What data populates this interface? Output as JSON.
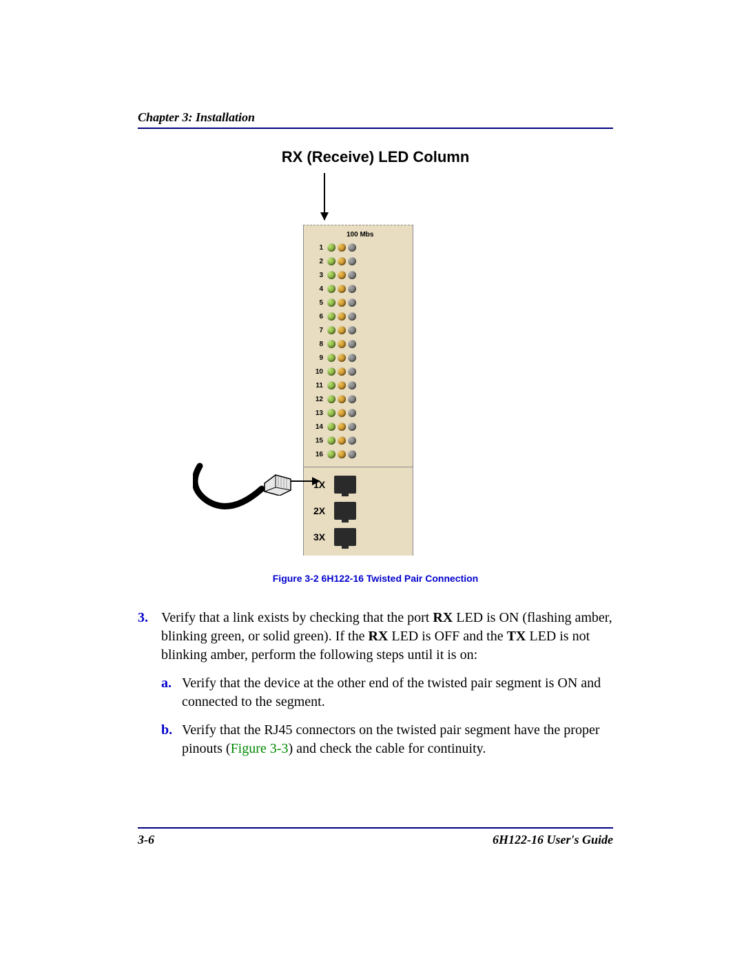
{
  "header": {
    "chapter": "Chapter 3:",
    "title": "Installation"
  },
  "figure": {
    "title": "RX (Receive) LED Column",
    "speed_label": "100 Mbs",
    "led_count": 16,
    "row_numbers": [
      "1",
      "2",
      "3",
      "4",
      "5",
      "6",
      "7",
      "8",
      "9",
      "10",
      "11",
      "12",
      "13",
      "14",
      "15",
      "16"
    ],
    "led_colors": [
      "green",
      "amber",
      "off"
    ],
    "ports": [
      {
        "label": "1X"
      },
      {
        "label": "2X"
      },
      {
        "label": "3X"
      }
    ],
    "panel_bg": "#e8ddc0",
    "caption": "Figure 3-2    6H122-16 Twisted Pair Connection"
  },
  "step": {
    "number": "3.",
    "text_parts": {
      "p1": "Verify that a link exists by checking that the port ",
      "b1": "RX",
      "p2": " LED is ON (flashing amber, blinking green, or solid green). If the ",
      "b2": "RX",
      "p3": " LED is OFF and the ",
      "b3": "TX",
      "p4": " LED is not blinking amber, perform the following steps until it is on:"
    },
    "subs": [
      {
        "num": "a.",
        "text": "Verify that the device at the other end of the twisted pair segment is ON and connected to the segment."
      },
      {
        "num": "b.",
        "text_pre": "Verify that the RJ45 connectors on the twisted pair segment have the proper pinouts (",
        "xref": "Figure 3-3",
        "text_post": ") and check the cable for continuity."
      }
    ]
  },
  "footer": {
    "page": "3-6",
    "guide": "6H122-16 User's Guide"
  },
  "colors": {
    "rule": "#000080",
    "link": "#0000cc",
    "xref": "#008800"
  }
}
